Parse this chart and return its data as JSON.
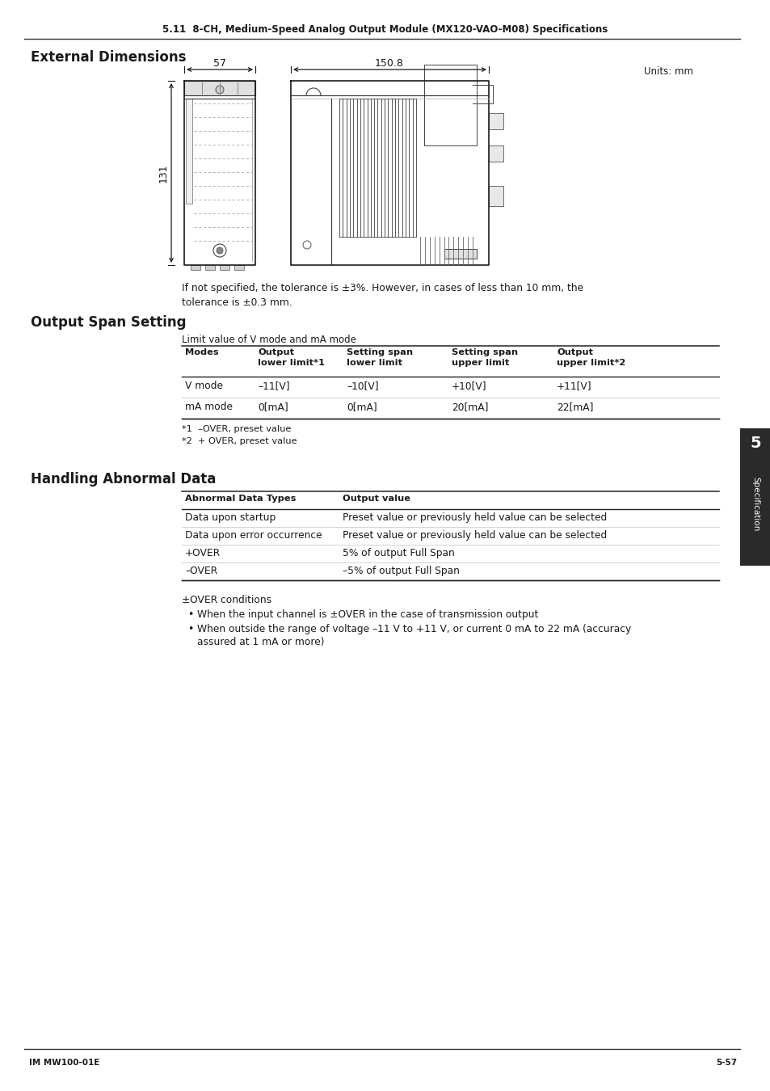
{
  "page_header": "5.11  8-CH, Medium-Speed Analog Output Module (MX120-VAO-M08) Specifications",
  "section1_title": "External Dimensions",
  "units_label": "Units: mm",
  "dim_57": "57",
  "dim_150_8": "150.8",
  "dim_131": "131",
  "tolerance_line1": "If not specified, the tolerance is ±3%. However, in cases of less than 10 mm, the",
  "tolerance_line2": "tolerance is ±0.3 mm.",
  "section2_title": "Output Span Setting",
  "table1_caption": "Limit value of V mode and mA mode",
  "table1_headers": [
    "Modes",
    "Output\nlower limit*1",
    "Setting span\nlower limit",
    "Setting span\nupper limit",
    "Output\nupper limit*2"
  ],
  "table1_rows": [
    [
      "V mode",
      "–11[V]",
      "–10[V]",
      "+10[V]",
      "+11[V]"
    ],
    [
      "mA mode",
      "0[mA]",
      "0[mA]",
      "20[mA]",
      "22[mA]"
    ]
  ],
  "table1_footnotes": [
    "*1  –OVER, preset value",
    "*2  + OVER, preset value"
  ],
  "section3_title": "Handling Abnormal Data",
  "table2_headers": [
    "Abnormal Data Types",
    "Output value"
  ],
  "table2_rows": [
    [
      "Data upon startup",
      "Preset value or previously held value can be selected"
    ],
    [
      "Data upon error occurrence",
      "Preset value or previously held value can be selected"
    ],
    [
      "+OVER",
      "5% of output Full Span"
    ],
    [
      "–OVER",
      "–5% of output Full Span"
    ]
  ],
  "over_conditions_title": "±OVER conditions",
  "bullet1": "When the input channel is ±OVER in the case of transmission output",
  "bullet2": "When outside the range of voltage –11 V to +11 V, or current 0 mA to 22 mA (accuracy",
  "bullet2b": "assured at 1 mA or more)",
  "footer_left": "IM MW100-01E",
  "footer_right": "5-57",
  "tab_label": "Specification",
  "tab_number": "5",
  "bg_color": "#ffffff",
  "text_color": "#1a1a1a",
  "tab_bg_color": "#2a2a2a"
}
